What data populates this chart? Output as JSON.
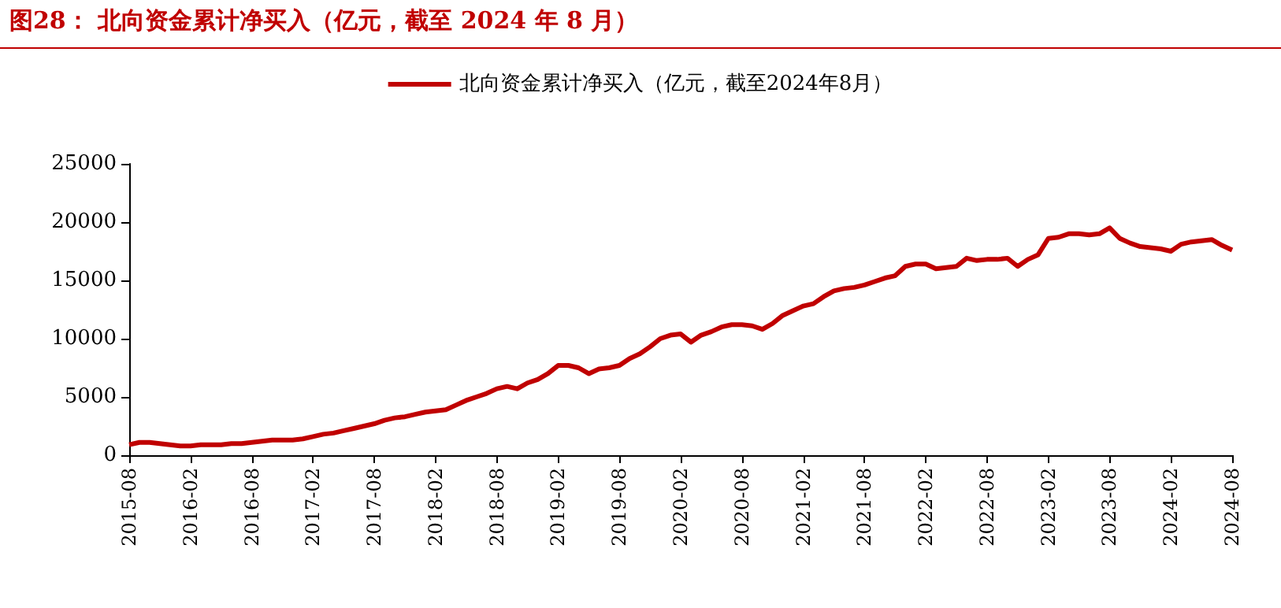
{
  "chart_data": {
    "type": "line",
    "title": "图28：  北向资金累计净买入（亿元，截至 2024 年 8 月）",
    "categories": [
      "2015-08",
      null,
      null,
      null,
      null,
      null,
      "2016-02",
      null,
      null,
      null,
      null,
      null,
      "2016-08",
      null,
      null,
      null,
      null,
      null,
      "2017-02",
      null,
      null,
      null,
      null,
      null,
      "2017-08",
      null,
      null,
      null,
      null,
      null,
      "2018-02",
      null,
      null,
      null,
      null,
      null,
      "2018-08",
      null,
      null,
      null,
      null,
      null,
      "2019-02",
      null,
      null,
      null,
      null,
      null,
      "2019-08",
      null,
      null,
      null,
      null,
      null,
      "2020-02",
      null,
      null,
      null,
      null,
      null,
      "2020-08",
      null,
      null,
      null,
      null,
      null,
      "2021-02",
      null,
      null,
      null,
      null,
      null,
      "2021-08",
      null,
      null,
      null,
      null,
      null,
      "2022-02",
      null,
      null,
      null,
      null,
      null,
      "2022-08",
      null,
      null,
      null,
      null,
      null,
      "2023-02",
      null,
      null,
      null,
      null,
      null,
      "2023-08",
      null,
      null,
      null,
      null,
      null,
      "2024-02",
      null,
      null,
      null,
      null,
      null,
      "2024-08"
    ],
    "series": [
      {
        "name": "北向资金累计净买入（亿元，截至2024年8月）",
        "color": "#c00000",
        "values": [
          900,
          1100,
          1100,
          1000,
          900,
          800,
          800,
          900,
          900,
          900,
          1000,
          1000,
          1100,
          1200,
          1300,
          1300,
          1300,
          1400,
          1600,
          1800,
          1900,
          2100,
          2300,
          2500,
          2700,
          3000,
          3200,
          3300,
          3500,
          3700,
          3800,
          3900,
          4300,
          4700,
          5000,
          5300,
          5700,
          5900,
          5700,
          6200,
          6500,
          7000,
          7700,
          7700,
          7500,
          7000,
          7400,
          7500,
          7700,
          8300,
          8700,
          9300,
          10000,
          10300,
          10400,
          9700,
          10300,
          10600,
          11000,
          11200,
          11200,
          11100,
          10800,
          11300,
          12000,
          12400,
          12800,
          13000,
          13600,
          14100,
          14300,
          14400,
          14600,
          14900,
          15200,
          15400,
          16200,
          16400,
          16400,
          16000,
          16100,
          16200,
          16900,
          16700,
          16800,
          16800,
          16900,
          16200,
          16800,
          17200,
          18600,
          18700,
          19000,
          19000,
          18900,
          19000,
          19500,
          18600,
          18200,
          17900,
          17800,
          17700,
          17500,
          18100,
          18300,
          18400,
          18500,
          18000,
          17600
        ]
      }
    ],
    "ylim": [
      0,
      25000
    ],
    "yticks": [
      0,
      5000,
      10000,
      15000,
      20000,
      25000
    ],
    "grid": false,
    "legend": "top",
    "marker": "none",
    "line_style": "solid"
  }
}
